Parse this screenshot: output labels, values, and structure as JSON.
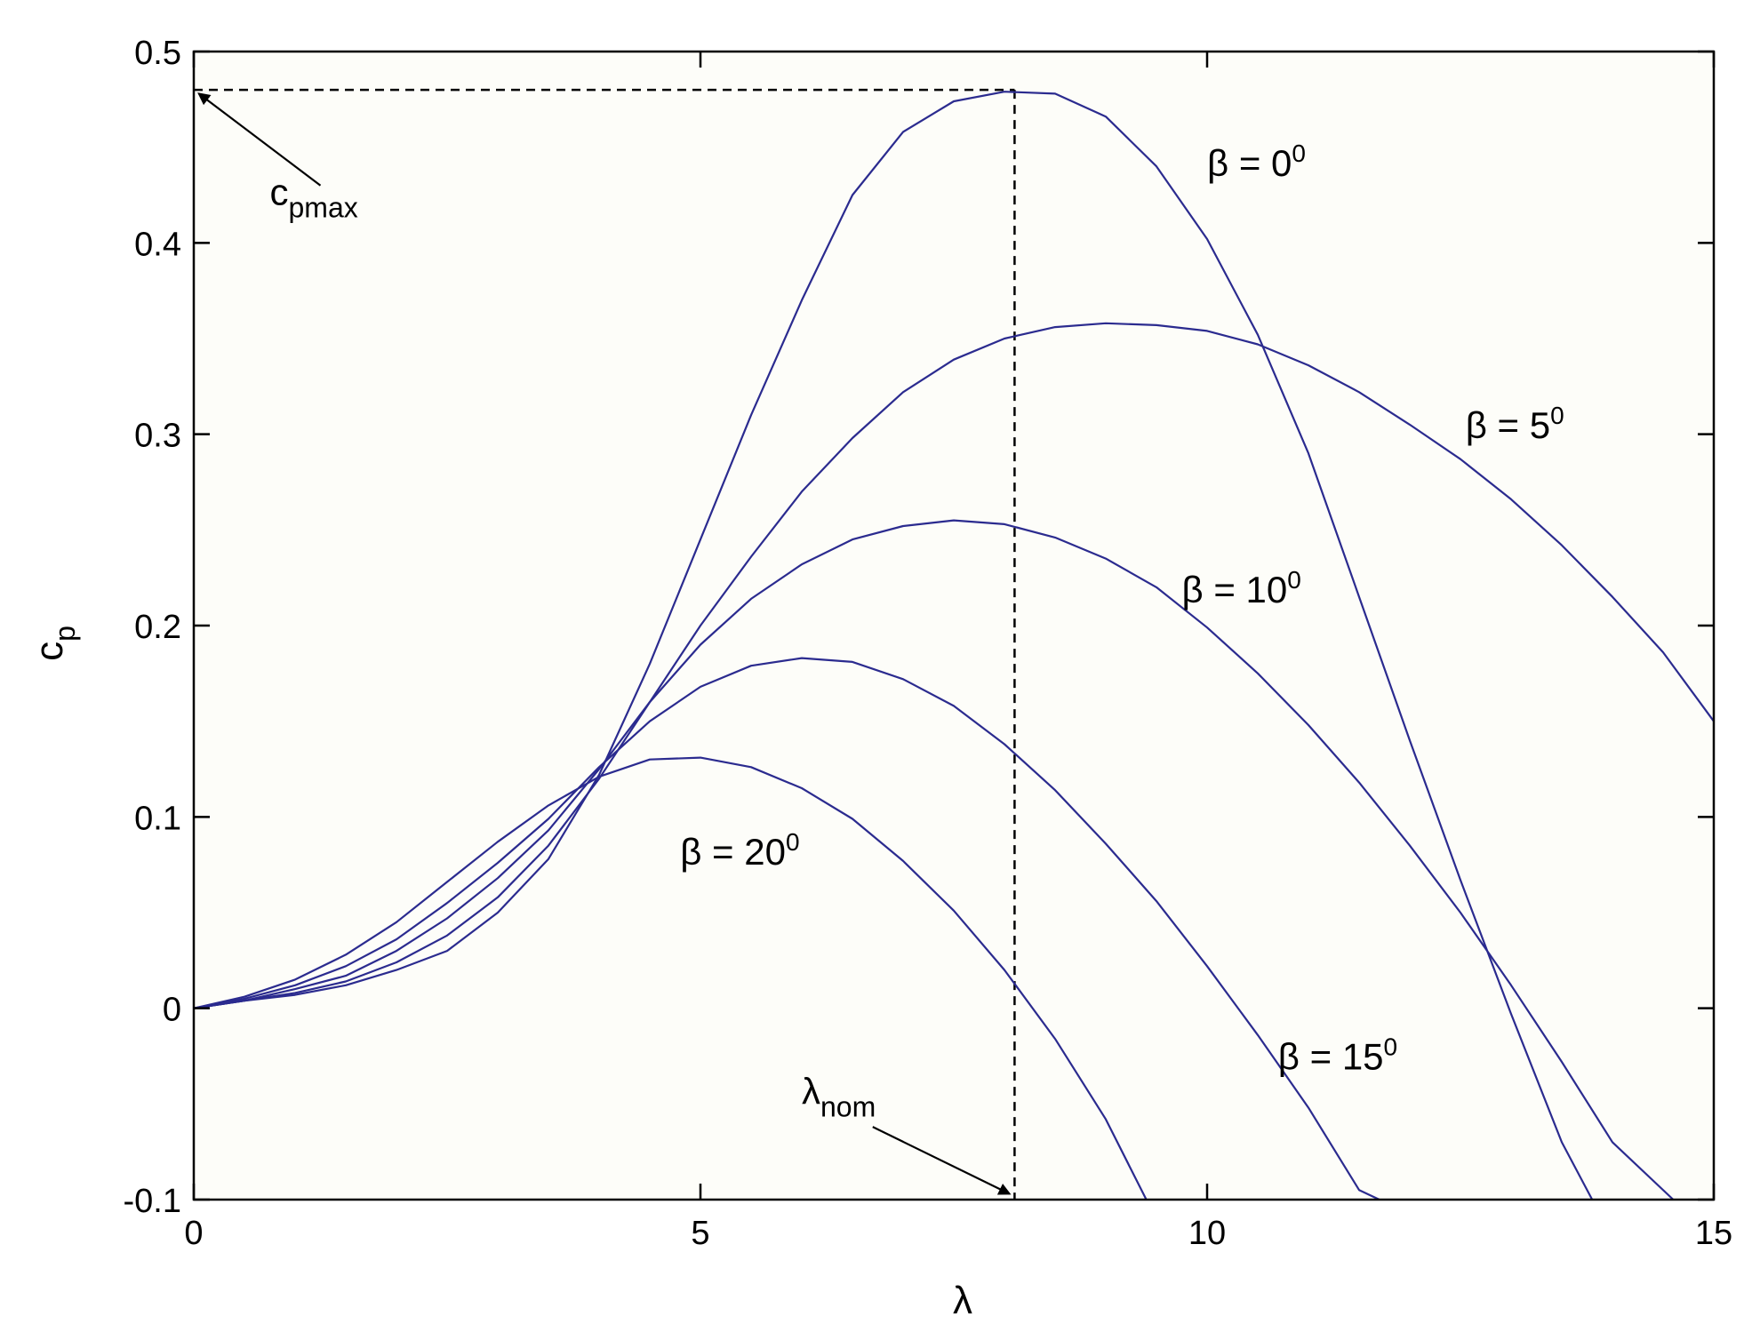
{
  "chart_data": {
    "type": "line",
    "xlabel": "λ",
    "ylabel_main": "c",
    "ylabel_sub": "p",
    "xlim": [
      0,
      15
    ],
    "ylim": [
      -0.1,
      0.5
    ],
    "grid": false,
    "xticks": [
      0,
      5,
      10,
      15
    ],
    "xtick_labels": [
      "0",
      "5",
      "10",
      "15"
    ],
    "yticks": [
      -0.1,
      0,
      0.1,
      0.2,
      0.3,
      0.4,
      0.5
    ],
    "ytick_labels": [
      "-0.1",
      "0",
      "0.1",
      "0.2",
      "0.3",
      "0.4",
      "0.5"
    ],
    "line_color": "#2b2b8f",
    "series": [
      {
        "label_main": "β = 0",
        "label_sup": "0",
        "label_at": [
          10.0,
          0.435
        ],
        "points": [
          [
            0,
            0
          ],
          [
            0.5,
            0.004
          ],
          [
            1,
            0.007
          ],
          [
            1.5,
            0.012
          ],
          [
            2,
            0.02
          ],
          [
            2.5,
            0.03
          ],
          [
            3,
            0.05
          ],
          [
            3.5,
            0.078
          ],
          [
            4,
            0.122
          ],
          [
            4.5,
            0.18
          ],
          [
            5,
            0.245
          ],
          [
            5.5,
            0.31
          ],
          [
            6,
            0.37
          ],
          [
            6.5,
            0.425
          ],
          [
            7,
            0.458
          ],
          [
            7.5,
            0.474
          ],
          [
            8,
            0.479
          ],
          [
            8.5,
            0.478
          ],
          [
            9,
            0.466
          ],
          [
            9.5,
            0.44
          ],
          [
            10,
            0.402
          ],
          [
            10.5,
            0.352
          ],
          [
            11,
            0.29
          ],
          [
            11.5,
            0.215
          ],
          [
            12,
            0.14
          ],
          [
            12.5,
            0.067
          ],
          [
            13,
            -0.003
          ],
          [
            13.5,
            -0.07
          ],
          [
            13.8,
            -0.105
          ]
        ]
      },
      {
        "label_main": "β = 5",
        "label_sup": "0",
        "label_at": [
          12.55,
          0.298
        ],
        "points": [
          [
            0,
            0
          ],
          [
            0.5,
            0.004
          ],
          [
            1,
            0.008
          ],
          [
            1.5,
            0.014
          ],
          [
            2,
            0.024
          ],
          [
            2.5,
            0.038
          ],
          [
            3,
            0.058
          ],
          [
            3.5,
            0.085
          ],
          [
            4,
            0.12
          ],
          [
            4.5,
            0.16
          ],
          [
            5,
            0.2
          ],
          [
            5.5,
            0.236
          ],
          [
            6,
            0.27
          ],
          [
            6.5,
            0.298
          ],
          [
            7,
            0.322
          ],
          [
            7.5,
            0.339
          ],
          [
            8,
            0.35
          ],
          [
            8.5,
            0.356
          ],
          [
            9,
            0.358
          ],
          [
            9.5,
            0.357
          ],
          [
            10,
            0.354
          ],
          [
            10.5,
            0.347
          ],
          [
            11,
            0.336
          ],
          [
            11.5,
            0.322
          ],
          [
            12,
            0.305
          ],
          [
            12.5,
            0.287
          ],
          [
            13,
            0.266
          ],
          [
            13.5,
            0.242
          ],
          [
            14,
            0.215
          ],
          [
            14.5,
            0.186
          ],
          [
            15,
            0.15
          ]
        ]
      },
      {
        "label_main": "β = 10",
        "label_sup": "0",
        "label_at": [
          9.75,
          0.212
        ],
        "points": [
          [
            0,
            0
          ],
          [
            0.5,
            0.004
          ],
          [
            1,
            0.01
          ],
          [
            1.5,
            0.017
          ],
          [
            2,
            0.03
          ],
          [
            2.5,
            0.047
          ],
          [
            3,
            0.068
          ],
          [
            3.5,
            0.093
          ],
          [
            4,
            0.125
          ],
          [
            4.5,
            0.16
          ],
          [
            5,
            0.19
          ],
          [
            5.5,
            0.214
          ],
          [
            6,
            0.232
          ],
          [
            6.5,
            0.245
          ],
          [
            7,
            0.252
          ],
          [
            7.5,
            0.255
          ],
          [
            8,
            0.253
          ],
          [
            8.5,
            0.246
          ],
          [
            9,
            0.235
          ],
          [
            9.5,
            0.22
          ],
          [
            10,
            0.199
          ],
          [
            10.5,
            0.175
          ],
          [
            11,
            0.148
          ],
          [
            11.5,
            0.118
          ],
          [
            12,
            0.085
          ],
          [
            12.5,
            0.05
          ],
          [
            13,
            0.012
          ],
          [
            13.5,
            -0.028
          ],
          [
            14,
            -0.07
          ],
          [
            14.6,
            -0.105
          ]
        ]
      },
      {
        "label_main": "β = 15",
        "label_sup": "0",
        "label_at": [
          10.7,
          -0.032
        ],
        "points": [
          [
            0,
            0
          ],
          [
            0.5,
            0.005
          ],
          [
            1,
            0.012
          ],
          [
            1.5,
            0.022
          ],
          [
            2,
            0.036
          ],
          [
            2.5,
            0.055
          ],
          [
            3,
            0.076
          ],
          [
            3.5,
            0.099
          ],
          [
            4,
            0.126
          ],
          [
            4.5,
            0.15
          ],
          [
            5,
            0.168
          ],
          [
            5.5,
            0.179
          ],
          [
            6,
            0.183
          ],
          [
            6.5,
            0.181
          ],
          [
            7,
            0.172
          ],
          [
            7.5,
            0.158
          ],
          [
            8,
            0.138
          ],
          [
            8.5,
            0.114
          ],
          [
            9,
            0.086
          ],
          [
            9.5,
            0.056
          ],
          [
            10,
            0.022
          ],
          [
            10.5,
            -0.014
          ],
          [
            11,
            -0.052
          ],
          [
            11.5,
            -0.095
          ],
          [
            11.7,
            -0.105
          ]
        ]
      },
      {
        "label_main": "β = 20",
        "label_sup": "0",
        "label_at": [
          4.8,
          0.075
        ],
        "points": [
          [
            0,
            0
          ],
          [
            0.5,
            0.006
          ],
          [
            1,
            0.015
          ],
          [
            1.5,
            0.028
          ],
          [
            2,
            0.045
          ],
          [
            2.5,
            0.066
          ],
          [
            3,
            0.087
          ],
          [
            3.5,
            0.106
          ],
          [
            4,
            0.121
          ],
          [
            4.5,
            0.13
          ],
          [
            5,
            0.131
          ],
          [
            5.5,
            0.126
          ],
          [
            6,
            0.115
          ],
          [
            6.5,
            0.099
          ],
          [
            7,
            0.077
          ],
          [
            7.5,
            0.051
          ],
          [
            8,
            0.02
          ],
          [
            8.5,
            -0.016
          ],
          [
            9,
            -0.058
          ],
          [
            9.4,
            -0.1
          ]
        ]
      }
    ],
    "reference_lines": {
      "cpmax_value": 0.48,
      "lambda_nom_value": 8.1
    },
    "annotations": [
      {
        "main": "c",
        "sub": "pmax",
        "text_at": [
          0.75,
          0.42
        ],
        "arrow_from": [
          1.25,
          0.43
        ],
        "arrow_to": [
          0.05,
          0.478
        ]
      },
      {
        "main": "λ",
        "sub": "nom",
        "text_at": [
          6.0,
          -0.05
        ],
        "arrow_from": [
          6.7,
          -0.062
        ],
        "arrow_to": [
          8.05,
          -0.097
        ]
      }
    ]
  }
}
